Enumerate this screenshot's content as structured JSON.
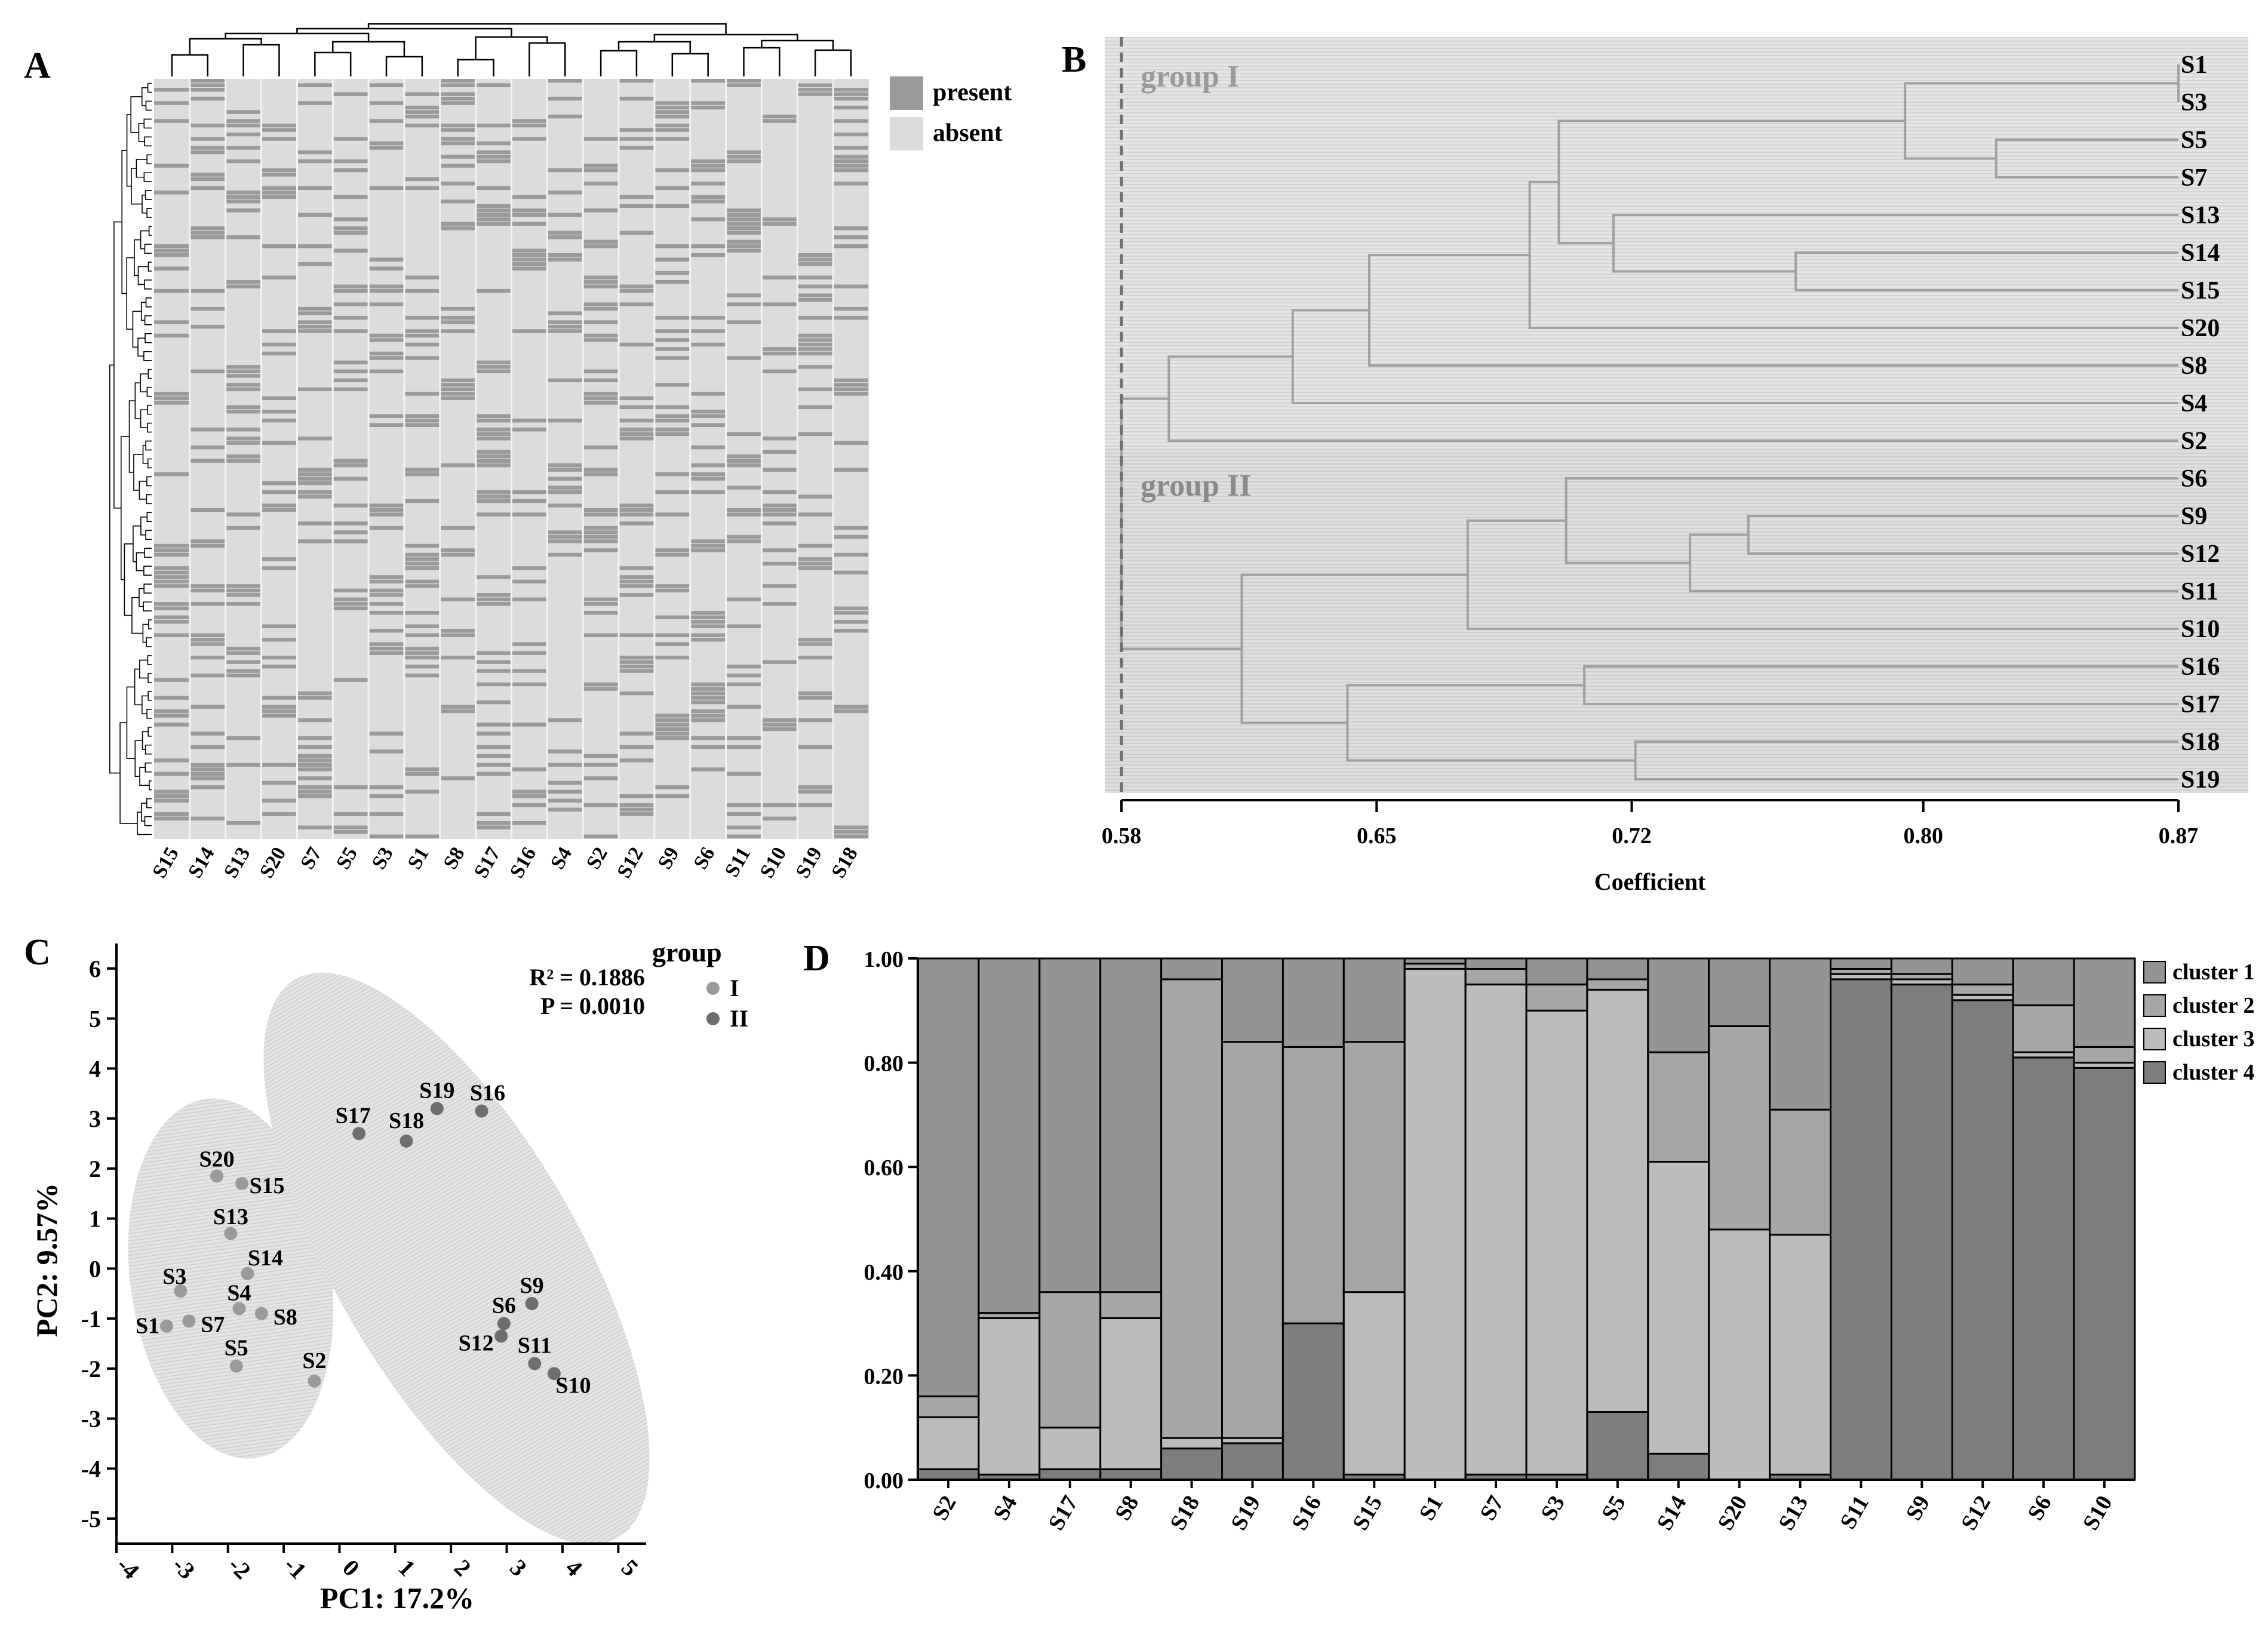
{
  "panels": {
    "a": "A",
    "b": "B",
    "c": "C",
    "d": "D"
  },
  "chart_data": [
    {
      "panel": "A",
      "type": "heatmap",
      "title": "",
      "columns": [
        "S15",
        "S14",
        "S13",
        "S20",
        "S7",
        "S5",
        "S3",
        "S1",
        "S8",
        "S17",
        "S16",
        "S4",
        "S2",
        "S12",
        "S9",
        "S6",
        "S11",
        "S10",
        "S19",
        "S18"
      ],
      "legend": [
        "present",
        "absent"
      ],
      "colors": {
        "present": "#9a9a9a",
        "absent": "#dcdcdc"
      }
    },
    {
      "panel": "B",
      "type": "dendrogram",
      "xlabel": "Coefficient",
      "xlim": [
        0.58,
        0.87
      ],
      "xticks": [
        "0.58",
        "0.65",
        "0.72",
        "0.80",
        "0.87"
      ],
      "groups": [
        {
          "name": "group I",
          "leaves": [
            "S1",
            "S3",
            "S5",
            "S7",
            "S13",
            "S14",
            "S15",
            "S20",
            "S8",
            "S4",
            "S2"
          ]
        },
        {
          "name": "group II",
          "leaves": [
            "S6",
            "S9",
            "S12",
            "S11",
            "S10",
            "S16",
            "S17",
            "S18",
            "S19"
          ]
        }
      ],
      "cut_value": 0.58,
      "merges": [
        {
          "a": "S1",
          "b": "S3",
          "h": 0.87
        },
        {
          "a": "S5",
          "b": "S7",
          "h": 0.82
        },
        {
          "a": "S1|S3",
          "b": "S5|S7",
          "h": 0.795
        },
        {
          "a": "S14",
          "b": "S15",
          "h": 0.765
        },
        {
          "a": "S13",
          "b": "S14|S15",
          "h": 0.715
        },
        {
          "a": "S1|S3|S5|S7",
          "b": "S13|S14|S15",
          "h": 0.7
        },
        {
          "a": "S1|S3|S5|S7|S13|S14|S15",
          "b": "S20",
          "h": 0.692
        },
        {
          "a": "S1|S3|S5|S7|S13|S14|S15|S20",
          "b": "S8",
          "h": 0.648
        },
        {
          "a": "S1|S3|S5|S7|S13|S14|S15|S20|S8",
          "b": "S4",
          "h": 0.627
        },
        {
          "a": "S1|S3|S5|S7|S13|S14|S15|S20|S8|S4",
          "b": "S2",
          "h": 0.593
        },
        {
          "a": "S9",
          "b": "S12",
          "h": 0.752
        },
        {
          "a": "S9|S12",
          "b": "S11",
          "h": 0.736
        },
        {
          "a": "S6",
          "b": "S9|S12|S11",
          "h": 0.702
        },
        {
          "a": "S6|S9|S12|S11",
          "b": "S10",
          "h": 0.675
        },
        {
          "a": "S16",
          "b": "S17",
          "h": 0.707
        },
        {
          "a": "S18",
          "b": "S19",
          "h": 0.721
        },
        {
          "a": "S16|S17",
          "b": "S18|S19",
          "h": 0.642
        },
        {
          "a": "S6|S9|S12|S11|S10",
          "b": "S16|S17|S18|S19",
          "h": 0.613
        },
        {
          "a": "I",
          "b": "II",
          "h": 0.58
        }
      ]
    },
    {
      "panel": "C",
      "type": "scatter",
      "xlabel": "PC1: 17.2%",
      "ylabel": "PC2: 9.57%",
      "xlim": [
        -4,
        5.5
      ],
      "ylim": [
        -5.5,
        6.5
      ],
      "xticks": [
        -4,
        -3,
        -2,
        -1,
        0,
        1,
        2,
        3,
        4,
        5
      ],
      "yticks": [
        -5,
        -4,
        -3,
        -2,
        -1,
        0,
        1,
        2,
        3,
        4,
        5,
        6
      ],
      "stats": [
        "R² = 0.1886",
        "P = 0.0010"
      ],
      "legend_title": "group",
      "series": [
        {
          "name": "I",
          "color": "#9a9a9a",
          "points": [
            {
              "label": "S20",
              "x": -2.2,
              "y": 1.85
            },
            {
              "label": "S15",
              "x": -1.75,
              "y": 1.7
            },
            {
              "label": "S13",
              "x": -1.95,
              "y": 0.7
            },
            {
              "label": "S14",
              "x": -1.65,
              "y": -0.1
            },
            {
              "label": "S3",
              "x": -2.85,
              "y": -0.45
            },
            {
              "label": "S4",
              "x": -1.8,
              "y": -0.8
            },
            {
              "label": "S8",
              "x": -1.4,
              "y": -0.9
            },
            {
              "label": "S1",
              "x": -3.1,
              "y": -1.15
            },
            {
              "label": "S7",
              "x": -2.7,
              "y": -1.05
            },
            {
              "label": "S5",
              "x": -1.85,
              "y": -1.95
            },
            {
              "label": "S2",
              "x": -0.45,
              "y": -2.25
            }
          ]
        },
        {
          "name": "II",
          "color": "#6e6e6e",
          "points": [
            {
              "label": "S17",
              "x": 0.35,
              "y": 2.7
            },
            {
              "label": "S18",
              "x": 1.2,
              "y": 2.55
            },
            {
              "label": "S19",
              "x": 1.75,
              "y": 3.2
            },
            {
              "label": "S16",
              "x": 2.55,
              "y": 3.15
            },
            {
              "label": "S9",
              "x": 3.45,
              "y": -0.7
            },
            {
              "label": "S6",
              "x": 2.95,
              "y": -1.1
            },
            {
              "label": "S12",
              "x": 2.9,
              "y": -1.35
            },
            {
              "label": "S11",
              "x": 3.5,
              "y": -1.9
            },
            {
              "label": "S10",
              "x": 3.85,
              "y": -2.1
            }
          ]
        }
      ]
    },
    {
      "panel": "D",
      "type": "bar",
      "stacked": true,
      "ylim": [
        0,
        1
      ],
      "yticks": [
        "0.00",
        "0.20",
        "0.40",
        "0.60",
        "0.80",
        "1.00"
      ],
      "categories": [
        "S2",
        "S4",
        "S17",
        "S8",
        "S18",
        "S19",
        "S16",
        "S15",
        "S1",
        "S7",
        "S3",
        "S5",
        "S14",
        "S20",
        "S13",
        "S11",
        "S9",
        "S12",
        "S6",
        "S10"
      ],
      "series": [
        {
          "name": "cluster 4",
          "color": "#7e7e7e",
          "values": [
            0.02,
            0.01,
            0.02,
            0.02,
            0.06,
            0.07,
            0.3,
            0.01,
            0.0,
            0.01,
            0.01,
            0.13,
            0.05,
            0.0,
            0.01,
            0.96,
            0.95,
            0.92,
            0.81,
            0.79
          ]
        },
        {
          "name": "cluster 3",
          "color": "#bcbcbc",
          "values": [
            0.1,
            0.3,
            0.08,
            0.29,
            0.02,
            0.01,
            0.0,
            0.35,
            0.98,
            0.94,
            0.89,
            0.81,
            0.56,
            0.48,
            0.46,
            0.01,
            0.01,
            0.01,
            0.01,
            0.01
          ]
        },
        {
          "name": "cluster 2",
          "color": "#a6a6a6",
          "values": [
            0.04,
            0.01,
            0.26,
            0.05,
            0.88,
            0.76,
            0.53,
            0.48,
            0.01,
            0.03,
            0.05,
            0.02,
            0.21,
            0.39,
            0.24,
            0.01,
            0.01,
            0.02,
            0.09,
            0.03
          ]
        },
        {
          "name": "cluster 1",
          "color": "#949494",
          "values": [
            0.84,
            0.68,
            0.64,
            0.64,
            0.04,
            0.16,
            0.17,
            0.16,
            0.01,
            0.02,
            0.05,
            0.04,
            0.18,
            0.13,
            0.29,
            0.02,
            0.03,
            0.05,
            0.09,
            0.17
          ]
        }
      ],
      "legend": [
        "cluster 1",
        "cluster 2",
        "cluster 3",
        "cluster 4"
      ]
    }
  ]
}
